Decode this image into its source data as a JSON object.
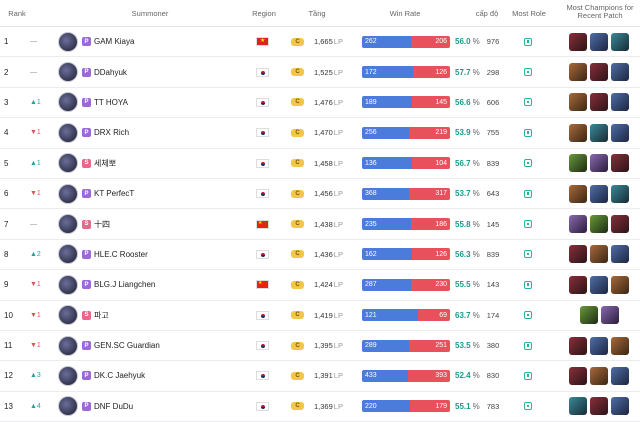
{
  "header": {
    "rank": "Rank",
    "summoner": "Summoner",
    "region": "Region",
    "tier": "Tầng",
    "winrate": "Win Rate",
    "level": "cấp độ",
    "role": "Most Role",
    "champs": "Most Champions for Recent Patch"
  },
  "lp_unit": "LP",
  "pct_unit": "%",
  "rows": [
    {
      "rank": "1",
      "change": "—",
      "dir": "same",
      "tier_badge": "P",
      "name": "GAM Kiaya",
      "region": "VN",
      "tier": "C",
      "lp": "1,665",
      "wins": "262",
      "losses": "206",
      "winrate": "56.0",
      "winfrac": 0.56,
      "games": "976",
      "champs": [
        "c0",
        "c1",
        "c2"
      ]
    },
    {
      "rank": "2",
      "change": "—",
      "dir": "same",
      "tier_badge": "P",
      "name": "DDahyuk",
      "region": "KR",
      "tier": "C",
      "lp": "1,525",
      "wins": "172",
      "losses": "126",
      "winrate": "57.7",
      "winfrac": 0.577,
      "games": "298",
      "champs": [
        "c3",
        "c0",
        "c1"
      ]
    },
    {
      "rank": "3",
      "change": "▲1",
      "dir": "up",
      "tier_badge": "P",
      "name": "TT HOYA",
      "region": "KR",
      "tier": "C",
      "lp": "1,476",
      "wins": "189",
      "losses": "145",
      "winrate": "56.6",
      "winfrac": 0.566,
      "games": "606",
      "champs": [
        "c3",
        "c0",
        "c1"
      ]
    },
    {
      "rank": "4",
      "change": "▼1",
      "dir": "down",
      "tier_badge": "P",
      "name": "DRX Rich",
      "region": "KR",
      "tier": "C",
      "lp": "1,470",
      "wins": "256",
      "losses": "219",
      "winrate": "53.9",
      "winfrac": 0.539,
      "games": "755",
      "champs": [
        "c3",
        "c2",
        "c1"
      ]
    },
    {
      "rank": "5",
      "change": "▲1",
      "dir": "up",
      "tier_badge": "S",
      "name": "세체뽀",
      "region": "KR",
      "tier": "C",
      "lp": "1,458",
      "wins": "136",
      "losses": "104",
      "winrate": "56.7",
      "winfrac": 0.567,
      "games": "839",
      "champs": [
        "c4",
        "c5",
        "c0"
      ]
    },
    {
      "rank": "6",
      "change": "▼1",
      "dir": "down",
      "tier_badge": "P",
      "name": "KT PerfecT",
      "region": "KR",
      "tier": "C",
      "lp": "1,456",
      "wins": "368",
      "losses": "317",
      "winrate": "53.7",
      "winfrac": 0.537,
      "games": "643",
      "champs": [
        "c3",
        "c1",
        "c2"
      ]
    },
    {
      "rank": "7",
      "change": "—",
      "dir": "same",
      "tier_badge": "S",
      "name": "十四",
      "region": "CN",
      "tier": "C",
      "lp": "1,438",
      "wins": "235",
      "losses": "186",
      "winrate": "55.8",
      "winfrac": 0.558,
      "games": "145",
      "champs": [
        "c5",
        "c4",
        "c0"
      ]
    },
    {
      "rank": "8",
      "change": "▲2",
      "dir": "up",
      "tier_badge": "P",
      "name": "HLE.C Rooster",
      "region": "KR",
      "tier": "C",
      "lp": "1,436",
      "wins": "162",
      "losses": "126",
      "winrate": "56.3",
      "winfrac": 0.563,
      "games": "839",
      "champs": [
        "c0",
        "c3",
        "c1"
      ]
    },
    {
      "rank": "9",
      "change": "▼1",
      "dir": "down",
      "tier_badge": "P",
      "name": "BLG.J Liangchen",
      "region": "CN",
      "tier": "C",
      "lp": "1,424",
      "wins": "287",
      "losses": "230",
      "winrate": "55.5",
      "winfrac": 0.555,
      "games": "143",
      "champs": [
        "c0",
        "c1",
        "c3"
      ]
    },
    {
      "rank": "10",
      "change": "▼1",
      "dir": "down",
      "tier_badge": "S",
      "name": "파고",
      "region": "KR",
      "tier": "C",
      "lp": "1,419",
      "wins": "121",
      "losses": "69",
      "winrate": "63.7",
      "winfrac": 0.637,
      "games": "174",
      "champs": [
        "c4",
        "c5"
      ]
    },
    {
      "rank": "11",
      "change": "▼1",
      "dir": "down",
      "tier_badge": "P",
      "name": "GEN.SC Guardian",
      "region": "KR",
      "tier": "C",
      "lp": "1,395",
      "wins": "289",
      "losses": "251",
      "winrate": "53.5",
      "winfrac": 0.535,
      "games": "380",
      "champs": [
        "c0",
        "c1",
        "c3"
      ]
    },
    {
      "rank": "12",
      "change": "▲3",
      "dir": "up",
      "tier_badge": "P",
      "name": "DK.C Jaehyuk",
      "region": "KR",
      "tier": "C",
      "lp": "1,391",
      "wins": "433",
      "losses": "393",
      "winrate": "52.4",
      "winfrac": 0.524,
      "games": "830",
      "champs": [
        "c0",
        "c3",
        "c1"
      ]
    },
    {
      "rank": "13",
      "change": "▲4",
      "dir": "up",
      "tier_badge": "P",
      "name": "DNF DuDu",
      "region": "KR",
      "tier": "C",
      "lp": "1,369",
      "wins": "220",
      "losses": "179",
      "winrate": "55.1",
      "winfrac": 0.551,
      "games": "783",
      "champs": [
        "c2",
        "c0",
        "c1"
      ]
    }
  ]
}
